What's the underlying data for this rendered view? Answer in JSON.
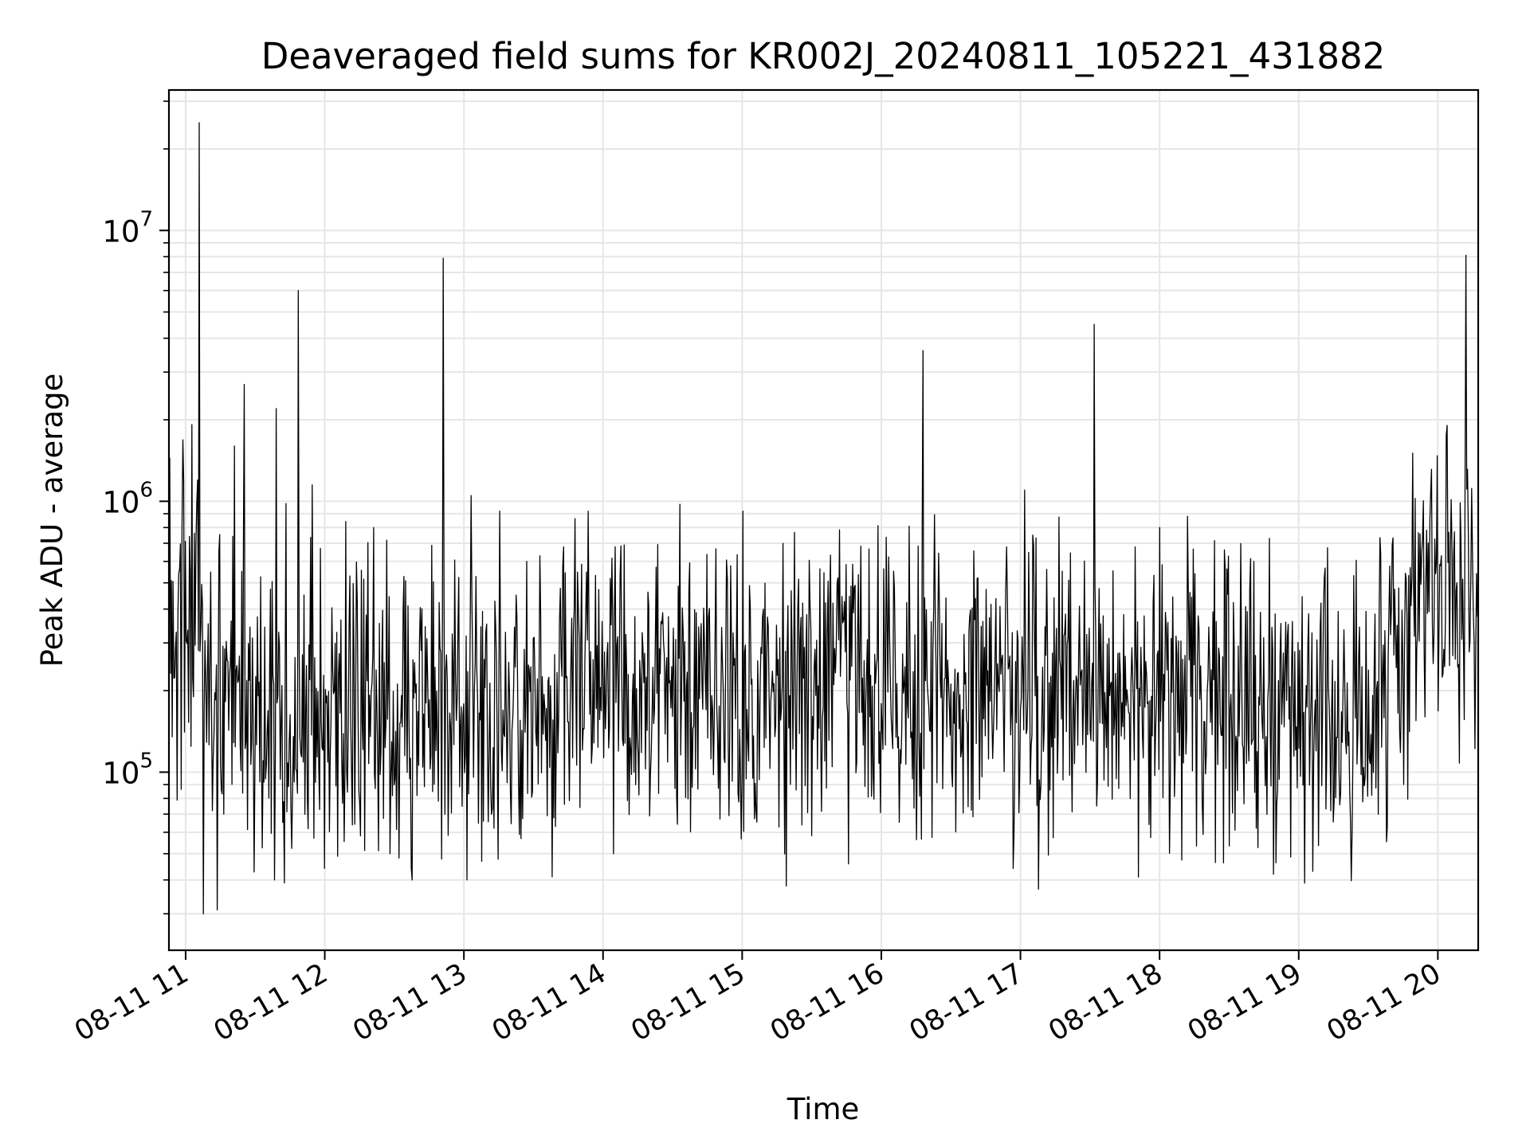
{
  "chart_data": {
    "type": "line",
    "title": "Deaveraged field sums for KR002J_20240811_105221_431882",
    "xlabel": "Time",
    "ylabel": "Peak ADU - average",
    "y_scale": "log",
    "ylim": [
      22000,
      33000000
    ],
    "xlim_hours": [
      10.88,
      20.29
    ],
    "grid": true,
    "line_color": "#000000",
    "x_ticks": [
      {
        "hour": 11,
        "label": "08-11 11"
      },
      {
        "hour": 12,
        "label": "08-11 12"
      },
      {
        "hour": 13,
        "label": "08-11 13"
      },
      {
        "hour": 14,
        "label": "08-11 14"
      },
      {
        "hour": 15,
        "label": "08-11 15"
      },
      {
        "hour": 16,
        "label": "08-11 16"
      },
      {
        "hour": 17,
        "label": "08-11 17"
      },
      {
        "hour": 18,
        "label": "08-11 18"
      },
      {
        "hour": 19,
        "label": "08-11 19"
      },
      {
        "hour": 20,
        "label": "08-11 20"
      }
    ],
    "y_ticks": [
      {
        "value": 100000,
        "base": "10",
        "exp": "5"
      },
      {
        "value": 1000000,
        "base": "10",
        "exp": "6"
      },
      {
        "value": 10000000,
        "base": "10",
        "exp": "7"
      }
    ],
    "baseline": [
      {
        "hour": 10.88,
        "value": 250000
      },
      {
        "hour": 11.05,
        "value": 430000
      },
      {
        "hour": 11.2,
        "value": 190000
      },
      {
        "hour": 12.0,
        "value": 150000
      },
      {
        "hour": 13.0,
        "value": 175000
      },
      {
        "hour": 14.0,
        "value": 200000
      },
      {
        "hour": 15.0,
        "value": 215000
      },
      {
        "hour": 16.0,
        "value": 210000
      },
      {
        "hour": 17.0,
        "value": 210000
      },
      {
        "hour": 18.0,
        "value": 205000
      },
      {
        "hour": 19.0,
        "value": 185000
      },
      {
        "hour": 19.55,
        "value": 180000
      },
      {
        "hour": 19.75,
        "value": 330000
      },
      {
        "hour": 19.9,
        "value": 520000
      },
      {
        "hour": 20.29,
        "value": 520000
      }
    ],
    "spikes": [
      {
        "hour": 11.1,
        "value": 25000000
      },
      {
        "hour": 11.35,
        "value": 1600000
      },
      {
        "hour": 11.42,
        "value": 2700000
      },
      {
        "hour": 11.65,
        "value": 2200000
      },
      {
        "hour": 11.81,
        "value": 6000000
      },
      {
        "hour": 11.91,
        "value": 1150000
      },
      {
        "hour": 12.35,
        "value": 800000
      },
      {
        "hour": 12.85,
        "value": 7900000
      },
      {
        "hour": 13.26,
        "value": 920000
      },
      {
        "hour": 14.15,
        "value": 690000
      },
      {
        "hour": 16.2,
        "value": 810000
      },
      {
        "hour": 16.3,
        "value": 3600000
      },
      {
        "hour": 17.03,
        "value": 1100000
      },
      {
        "hour": 17.53,
        "value": 4500000
      },
      {
        "hour": 18.2,
        "value": 880000
      },
      {
        "hour": 20.2,
        "value": 8100000
      }
    ],
    "dips": [
      {
        "hour": 11.13,
        "value": 30000
      },
      {
        "hour": 11.23,
        "value": 31000
      },
      {
        "hour": 11.64,
        "value": 40000
      },
      {
        "hour": 11.71,
        "value": 39000
      },
      {
        "hour": 12.63,
        "value": 40000
      },
      {
        "hour": 13.02,
        "value": 40000
      },
      {
        "hour": 15.32,
        "value": 38000
      },
      {
        "hour": 17.13,
        "value": 37000
      },
      {
        "hour": 17.85,
        "value": 41000
      },
      {
        "hour": 18.82,
        "value": 42000
      },
      {
        "hour": 19.1,
        "value": 43000
      }
    ],
    "noise_amplitude_decades": 0.28,
    "samples": 1600
  }
}
